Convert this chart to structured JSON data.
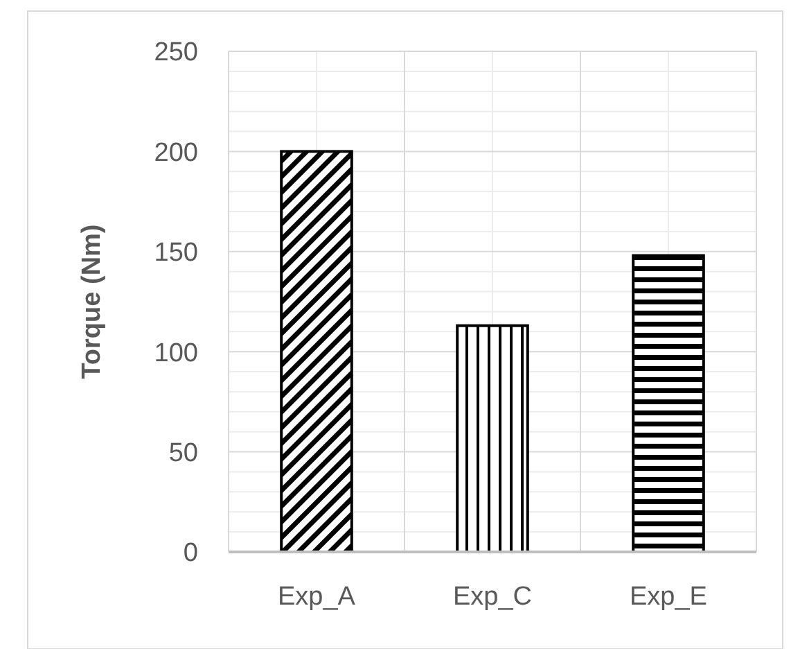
{
  "chart_data": {
    "type": "bar",
    "ylabel": "Torque (Nm)",
    "categories": [
      "Exp_A",
      "Exp_C",
      "Exp_E"
    ],
    "values": [
      200,
      113,
      148
    ],
    "colors": [
      "#000000",
      "#000000",
      "#000000"
    ],
    "ylim": [
      0,
      250
    ],
    "yticks": [
      0,
      50,
      100,
      150,
      200,
      250
    ],
    "grid": true
  }
}
